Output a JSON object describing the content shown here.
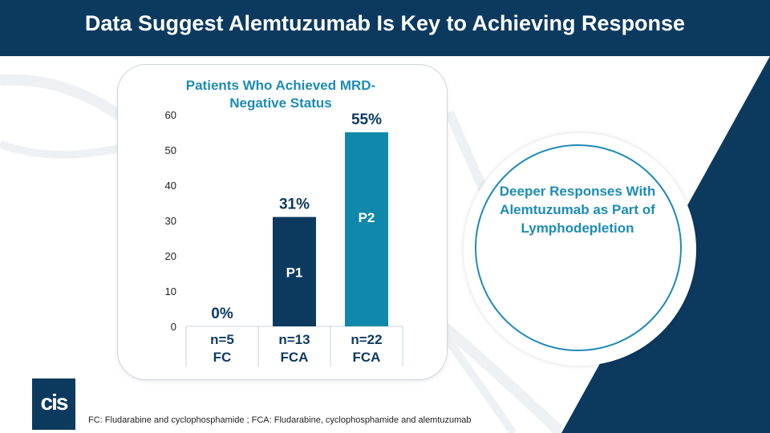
{
  "slide": {
    "title": "Data Suggest Alemtuzumab Is Key to Achieving Response",
    "callout": "Deeper Responses With Alemtuzumab as Part of Lymphodepletion",
    "footnote": "FC: Fludarabine and cyclophosphamide ; FCA: Fludarabine, cyclophosphamide and alemtuzumab",
    "logo_text": "cis"
  },
  "colors": {
    "navy": "#0c3a5f",
    "teal": "#1d8bb5",
    "bar_dark": "#0c3a5f",
    "bar_teal": "#0f88ab"
  },
  "chart_data": {
    "type": "bar",
    "title": "Patients Who Achieved MRD-Negative Status",
    "categories": [
      "n=5 FC",
      "n=13 FCA",
      "n=22 FCA"
    ],
    "category_lines": [
      [
        "n=5",
        "FC"
      ],
      [
        "n=13",
        "FCA"
      ],
      [
        "n=22",
        "FCA"
      ]
    ],
    "values": [
      0,
      31,
      55
    ],
    "value_labels": [
      "0%",
      "31%",
      "55%"
    ],
    "bar_labels": [
      "",
      "P1",
      "P2"
    ],
    "ylim": [
      0,
      60
    ],
    "yticks": [
      0,
      10,
      20,
      30,
      40,
      50,
      60
    ],
    "xlabel": "",
    "ylabel": ""
  }
}
